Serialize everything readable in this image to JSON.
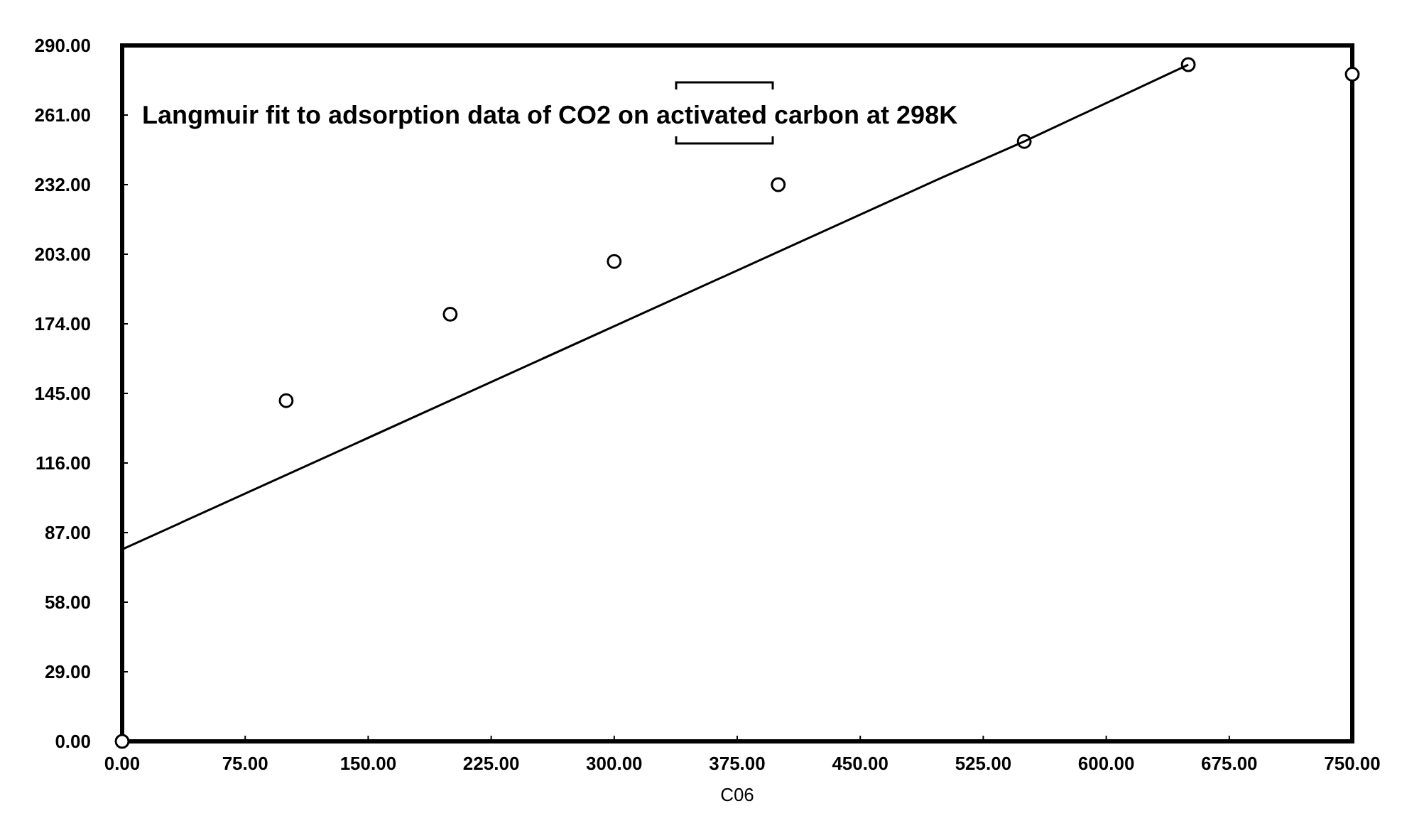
{
  "chart_data": {
    "type": "scatter",
    "title": "Langmuir fit to adsorption data of CO2 on activated carbon at 298K",
    "xlabel": "C06",
    "xlim": [
      0,
      750
    ],
    "ylim": [
      0,
      290
    ],
    "xticks": [
      {
        "value": 0,
        "label": "0.00"
      },
      {
        "value": 75,
        "label": "75.00"
      },
      {
        "value": 150,
        "label": "150.00"
      },
      {
        "value": 225,
        "label": "225.00"
      },
      {
        "value": 300,
        "label": "300.00"
      },
      {
        "value": 375,
        "label": "375.00"
      },
      {
        "value": 450,
        "label": "450.00"
      },
      {
        "value": 525,
        "label": "525.00"
      },
      {
        "value": 600,
        "label": "600.00"
      },
      {
        "value": 675,
        "label": "675.00"
      },
      {
        "value": 750,
        "label": "750.00"
      }
    ],
    "yticks": [
      {
        "value": 0,
        "label": "0.00"
      },
      {
        "value": 29,
        "label": "29.00"
      },
      {
        "value": 58,
        "label": "58.00"
      },
      {
        "value": 87,
        "label": "87.00"
      },
      {
        "value": 116,
        "label": "116.00"
      },
      {
        "value": 145,
        "label": "145.00"
      },
      {
        "value": 174,
        "label": "174.00"
      },
      {
        "value": 203,
        "label": "203.00"
      },
      {
        "value": 232,
        "label": "232.00"
      },
      {
        "value": 261,
        "label": "261.00"
      },
      {
        "value": 290,
        "label": "290.00"
      }
    ],
    "grid": false,
    "series": [
      {
        "color": "#000000",
        "marker": "circle",
        "x": [
          0,
          100,
          200,
          300,
          400,
          550,
          650,
          750
        ],
        "values": [
          0,
          142,
          178,
          200,
          232,
          250,
          282,
          278
        ]
      },
      {
        "type": "line",
        "color": "#000000",
        "marker": "none",
        "line_style": "solid",
        "x": [
          0,
          100,
          200,
          300,
          400,
          500,
          550,
          650
        ],
        "values": [
          80,
          111,
          142,
          173,
          204,
          235,
          250,
          282
        ]
      }
    ]
  }
}
